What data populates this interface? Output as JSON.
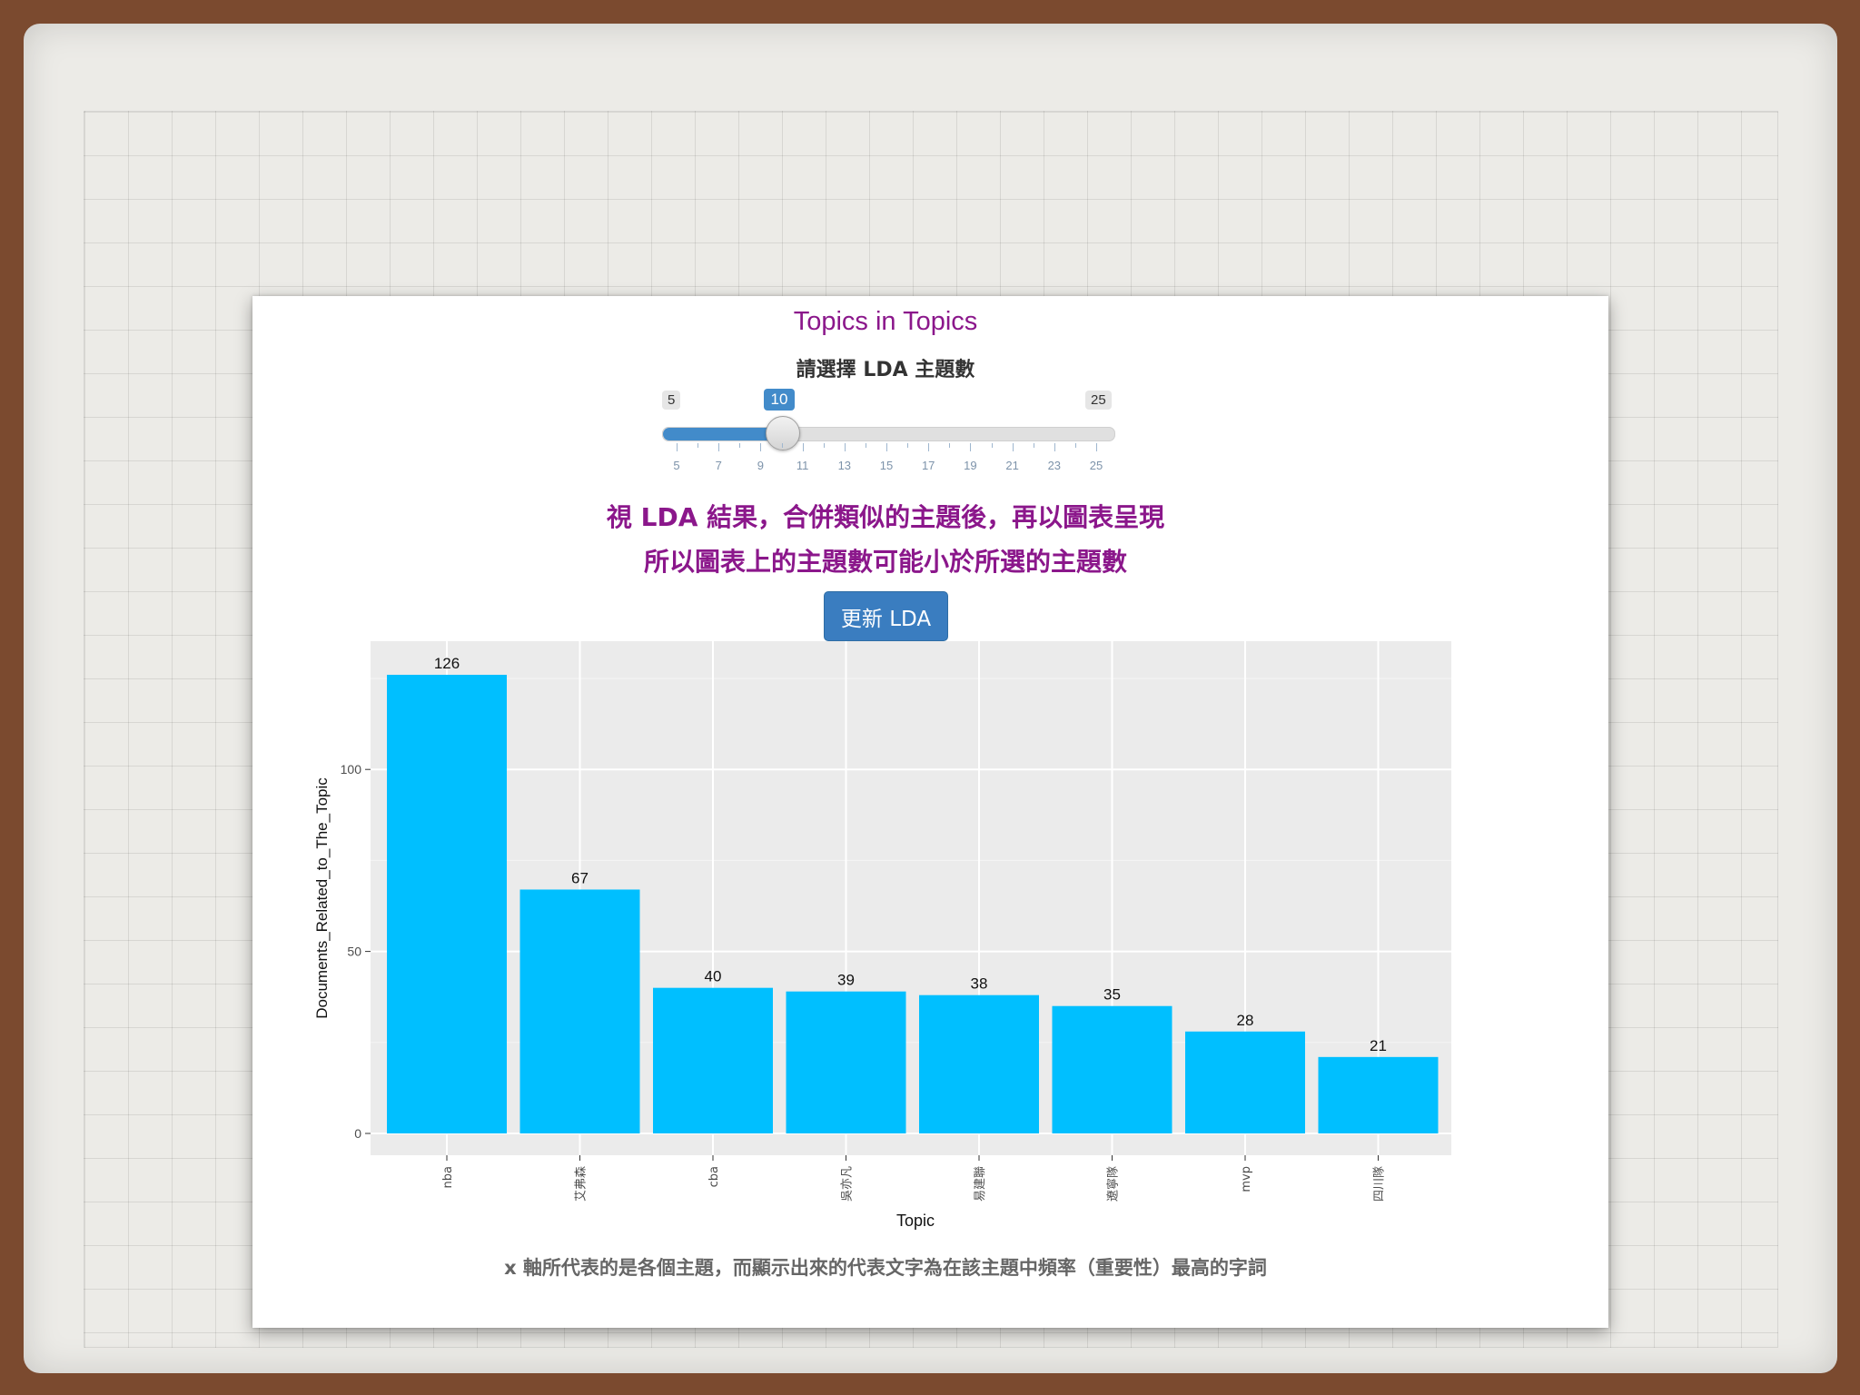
{
  "app": {
    "title": "Topics in Topics",
    "slider": {
      "label": "請選擇 LDA 主題數",
      "min": 5,
      "max": 25,
      "value": 10,
      "tick_labels": [
        "5",
        "7",
        "9",
        "11",
        "13",
        "15",
        "17",
        "19",
        "21",
        "23",
        "25"
      ]
    },
    "note_line1": "視 LDA 結果，合併類似的主題後，再以圖表呈現",
    "note_line2": "所以圖表上的主題數可能小於所選的主題數",
    "update_button_label": "更新 LDA",
    "footer": "x 軸所代表的是各個主題，而顯示出來的代表文字為在該主題中頻率（重要性）最高的字詞"
  },
  "colors": {
    "bar": "#00bfff",
    "accent_text": "#8b178b",
    "button": "#3a7dc0",
    "plot_background": "#ebebeb"
  },
  "chart_data": {
    "type": "bar",
    "categories": [
      "nba",
      "艾弗森",
      "cba",
      "吳亦凡",
      "易建聯",
      "遼寧隊",
      "mvp",
      "四川隊"
    ],
    "values": [
      126,
      67,
      40,
      39,
      38,
      35,
      28,
      21
    ],
    "xlabel": "Topic",
    "ylabel": "Documents_Related_to_The_Topic",
    "ylim": [
      0,
      131
    ],
    "yticks": [
      0,
      50,
      100
    ],
    "grid": true
  }
}
